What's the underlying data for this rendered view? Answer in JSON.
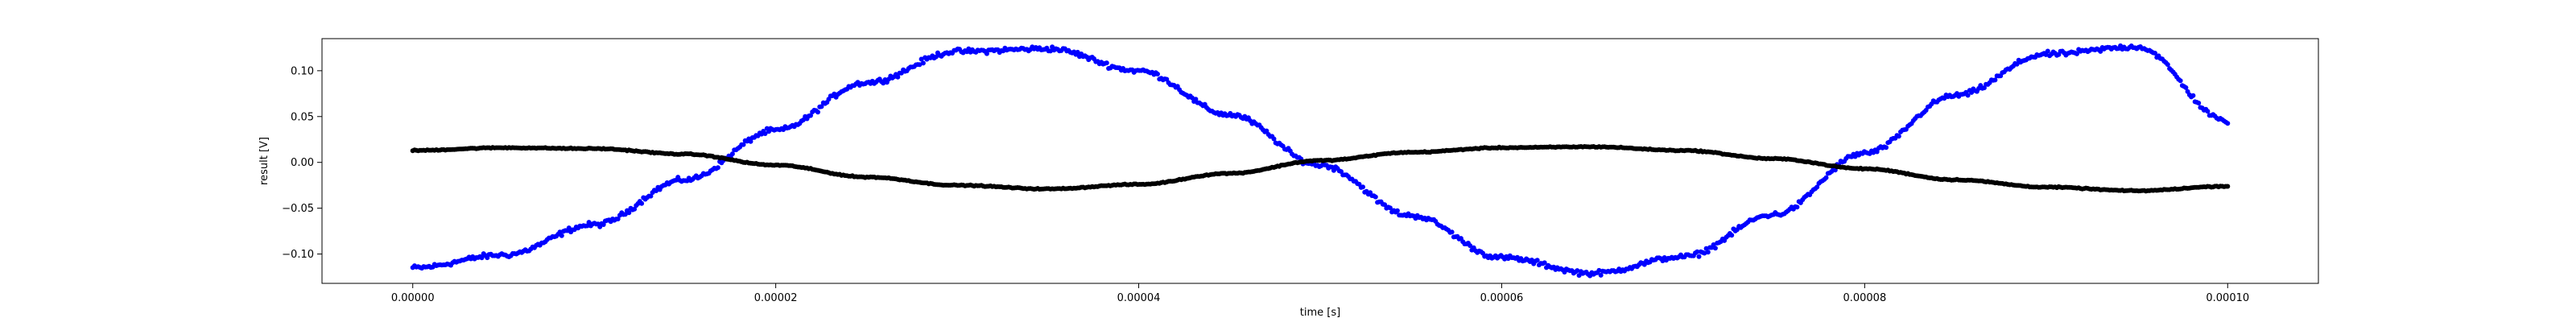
{
  "chart_data": {
    "type": "scatter",
    "xlabel": "time [s]",
    "ylabel": "result [V]",
    "xlim": [
      -5e-06,
      0.000105
    ],
    "ylim": [
      -0.132,
      0.135
    ],
    "grid": false,
    "x_ticks": [
      0.0,
      2e-05,
      4e-05,
      6e-05,
      8e-05,
      0.0001
    ],
    "x_tick_labels": [
      "0.00000",
      "0.00002",
      "0.00004",
      "0.00006",
      "0.00008",
      "0.00010"
    ],
    "y_ticks": [
      -0.1,
      -0.05,
      0.0,
      0.05,
      0.1
    ],
    "y_tick_labels": [
      "−0.10",
      "−0.05",
      "0.00",
      "0.05",
      "0.10"
    ],
    "series": [
      {
        "color": "#0000ff",
        "marker": "dot",
        "noise": 0.004,
        "x": [
          0.0,
          5e-06,
          1e-05,
          1.5e-05,
          2e-05,
          2.5e-05,
          3e-05,
          3.5e-05,
          4e-05,
          4.5e-05,
          5e-05,
          5.5e-05,
          6e-05,
          6.5e-05,
          7e-05,
          7.5e-05,
          8e-05,
          8.5e-05,
          9e-05,
          9.5e-05,
          0.0001
        ],
        "y": [
          -0.115,
          -0.101,
          -0.068,
          -0.019,
          0.035,
          0.087,
          0.121,
          0.124,
          0.1,
          0.052,
          -0.003,
          -0.058,
          -0.104,
          -0.121,
          -0.103,
          -0.057,
          0.01,
          0.073,
          0.118,
          0.126,
          0.045
        ]
      },
      {
        "color": "#000000",
        "marker": "dot",
        "noise": 0.0008,
        "x": [
          0.0,
          5e-06,
          1e-05,
          1.5e-05,
          2e-05,
          2.5e-05,
          3e-05,
          3.5e-05,
          4e-05,
          4.5e-05,
          5e-05,
          5.5e-05,
          6e-05,
          6.5e-05,
          7e-05,
          7.5e-05,
          8e-05,
          8.5e-05,
          9e-05,
          9.5e-05,
          0.0001
        ],
        "y": [
          0.013,
          0.016,
          0.015,
          0.009,
          -0.003,
          -0.016,
          -0.025,
          -0.029,
          -0.024,
          -0.012,
          0.002,
          0.011,
          0.016,
          0.017,
          0.013,
          0.004,
          -0.007,
          -0.019,
          -0.027,
          -0.031,
          -0.026
        ]
      }
    ]
  }
}
